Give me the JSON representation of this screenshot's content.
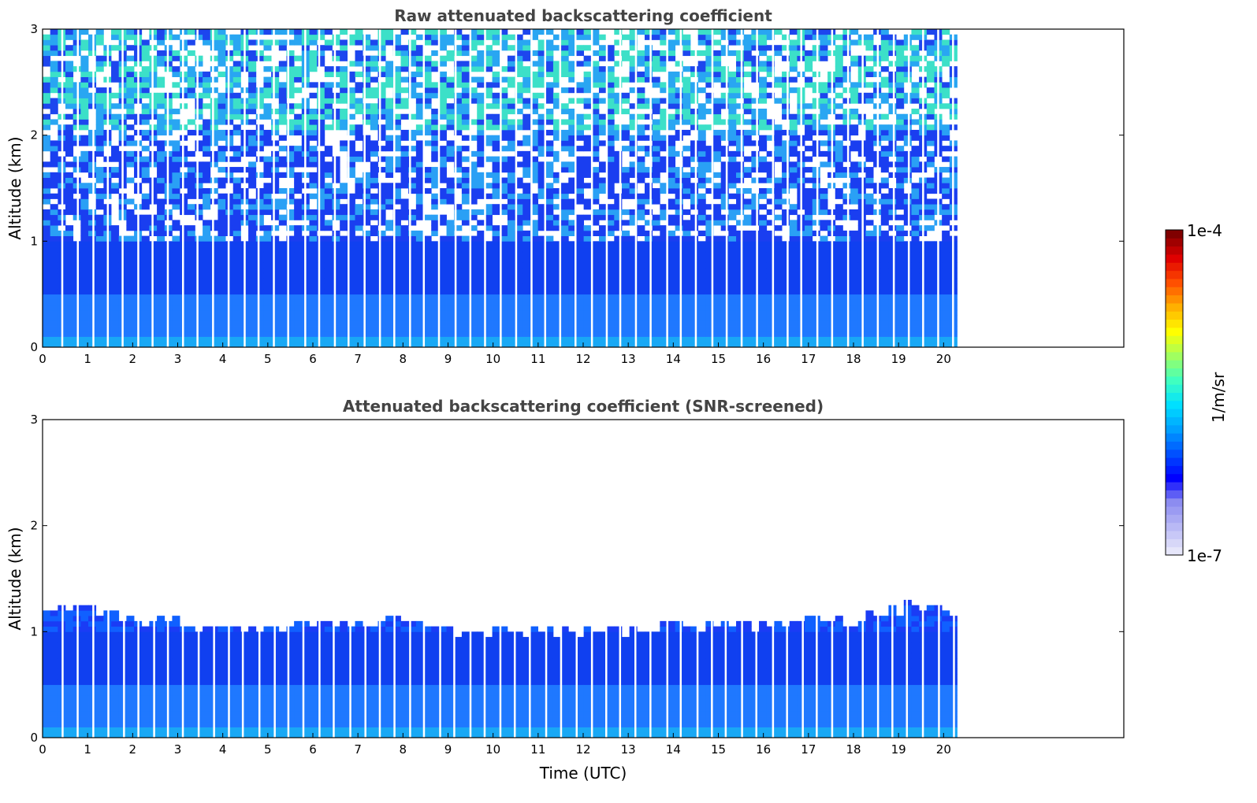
{
  "chart_data": [
    {
      "type": "heatmap",
      "title": "Raw attenuated backscattering coefficient",
      "xlabel": "",
      "ylabel": "Altitude (km)",
      "xlim": [
        0,
        24
      ],
      "ylim": [
        0,
        3
      ],
      "x_ticks": [
        "0",
        "1",
        "2",
        "3",
        "4",
        "5",
        "6",
        "7",
        "8",
        "9",
        "10",
        "11",
        "12",
        "13",
        "14",
        "15",
        "16",
        "17",
        "18",
        "19",
        "20"
      ],
      "y_ticks": [
        "0",
        "1",
        "2",
        "3"
      ],
      "data_time_range": [
        0,
        20.3
      ],
      "colorbar_scale": "log",
      "description_values": {
        "layers": [
          {
            "altitude_range_km": [
              0,
              0.1
            ],
            "approx_value": 2e-06
          },
          {
            "altitude_range_km": [
              0.1,
              0.5
            ],
            "approx_value": 1.5e-06
          },
          {
            "altitude_range_km": [
              0.5,
              1.0
            ],
            "approx_value": 8e-07
          },
          {
            "altitude_range_km": [
              1.0,
              2.0
            ],
            "approx_value": 4e-07,
            "noisy": true
          },
          {
            "altitude_range_km": [
              2.0,
              3.0
            ],
            "approx_value": 1.5e-06,
            "noisy": true
          }
        ]
      }
    },
    {
      "type": "heatmap",
      "title": "Attenuated backscattering coefficient (SNR-screened)",
      "xlabel": "Time (UTC)",
      "ylabel": "Altitude (km)",
      "xlim": [
        0,
        24
      ],
      "ylim": [
        0,
        3
      ],
      "x_ticks": [
        "0",
        "1",
        "2",
        "3",
        "4",
        "5",
        "6",
        "7",
        "8",
        "9",
        "10",
        "11",
        "12",
        "13",
        "14",
        "15",
        "16",
        "17",
        "18",
        "19",
        "20"
      ],
      "y_ticks": [
        "0",
        "1",
        "2",
        "3"
      ],
      "data_time_range": [
        0,
        20.3
      ],
      "colorbar_scale": "log",
      "boundary_layer_top_km": [
        {
          "t": 0,
          "h": 1.15
        },
        {
          "t": 1,
          "h": 1.2
        },
        {
          "t": 2,
          "h": 1.1
        },
        {
          "t": 3,
          "h": 1.05
        },
        {
          "t": 4,
          "h": 1.0
        },
        {
          "t": 5,
          "h": 1.05
        },
        {
          "t": 6,
          "h": 1.05
        },
        {
          "t": 7,
          "h": 1.05
        },
        {
          "t": 8,
          "h": 1.1
        },
        {
          "t": 9,
          "h": 1.0
        },
        {
          "t": 10,
          "h": 1.0
        },
        {
          "t": 11,
          "h": 1.0
        },
        {
          "t": 12,
          "h": 0.95
        },
        {
          "t": 13,
          "h": 1.0
        },
        {
          "t": 14,
          "h": 1.05
        },
        {
          "t": 15,
          "h": 1.05
        },
        {
          "t": 16,
          "h": 1.05
        },
        {
          "t": 17,
          "h": 1.1
        },
        {
          "t": 18,
          "h": 1.1
        },
        {
          "t": 19,
          "h": 1.2
        },
        {
          "t": 20.3,
          "h": 1.2
        }
      ]
    }
  ],
  "colorbar": {
    "min_label": "1e-7",
    "max_label": "1e-4",
    "label": "1/m/sr",
    "colormap": "jet",
    "colors": [
      "#e6e6fa",
      "#b9b9f5",
      "#8c8cf0",
      "#0000ff",
      "#0050ff",
      "#00a0ff",
      "#00e0ff",
      "#40ffc0",
      "#a0ff60",
      "#ffff00",
      "#ffb000",
      "#ff5000",
      "#e00000",
      "#800000"
    ]
  }
}
